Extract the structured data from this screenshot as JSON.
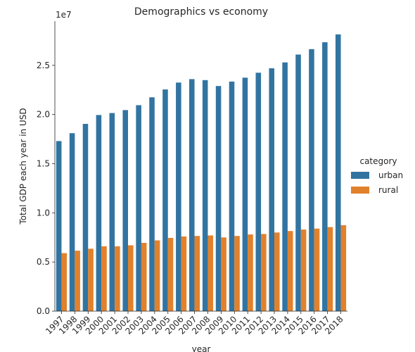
{
  "chart_data": {
    "type": "bar",
    "title": "Demographics vs economy",
    "xlabel": "year",
    "ylabel": "Total GDP each year in USD",
    "y_multiplier_label": "1e7",
    "ylim": [
      0,
      29500000
    ],
    "yticks": [
      0,
      5000000,
      10000000,
      15000000,
      20000000,
      25000000
    ],
    "ytick_labels": [
      "0.0",
      "0.5",
      "1.0",
      "1.5",
      "2.0",
      "2.5"
    ],
    "categories": [
      "1997",
      "1998",
      "1999",
      "2000",
      "2001",
      "2002",
      "2003",
      "2004",
      "2005",
      "2006",
      "2007",
      "2008",
      "2009",
      "2010",
      "2011",
      "2012",
      "2013",
      "2014",
      "2015",
      "2016",
      "2017",
      "2018"
    ],
    "legend": {
      "title": "category",
      "placement": "right"
    },
    "grid": false,
    "series": [
      {
        "name": "urban",
        "color": "#3274a1",
        "values": [
          17300000,
          18100000,
          19050000,
          19950000,
          20150000,
          20450000,
          20950000,
          21750000,
          22550000,
          23250000,
          23600000,
          23500000,
          22900000,
          23350000,
          23750000,
          24250000,
          24700000,
          25300000,
          26100000,
          26650000,
          27350000,
          28150000
        ]
      },
      {
        "name": "rural",
        "color": "#e1812c",
        "values": [
          5900000,
          6150000,
          6350000,
          6600000,
          6600000,
          6700000,
          6950000,
          7200000,
          7450000,
          7600000,
          7650000,
          7700000,
          7500000,
          7650000,
          7800000,
          7850000,
          8000000,
          8150000,
          8300000,
          8400000,
          8550000,
          8750000
        ]
      }
    ]
  }
}
